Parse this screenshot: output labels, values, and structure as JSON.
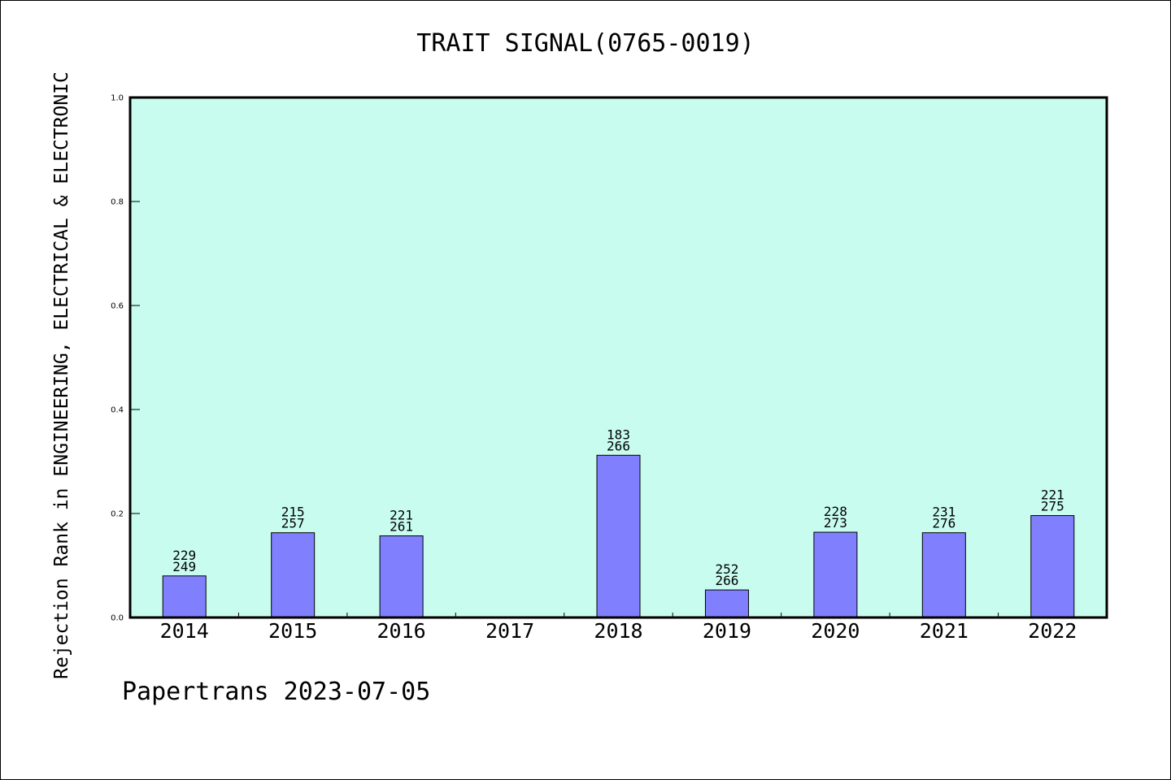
{
  "chart_data": {
    "type": "bar",
    "title": "TRAIT SIGNAL(0765-0019)",
    "ylabel": "Rejection Rank in ENGINEERING, ELECTRICAL & ELECTRONIC",
    "xlabel": "",
    "ylim": [
      0,
      1.0
    ],
    "yticks": [
      "0.0",
      "0.2",
      "0.4",
      "0.6",
      "0.8",
      "1.0"
    ],
    "categories": [
      "2014",
      "2015",
      "2016",
      "2017",
      "2018",
      "2019",
      "2020",
      "2021",
      "2022"
    ],
    "values": [
      0.08,
      0.163,
      0.157,
      null,
      0.312,
      0.053,
      0.164,
      0.163,
      0.196
    ],
    "rank_labels": [
      "229",
      "215",
      "221",
      "",
      "183",
      "252",
      "228",
      "231",
      "221"
    ],
    "total_labels": [
      "249",
      "257",
      "261",
      "",
      "266",
      "266",
      "273",
      "276",
      "275"
    ],
    "grid": false,
    "colors": {
      "plot_background": "#c8fcee",
      "bar_fill": "#8080ff"
    }
  },
  "footer": {
    "text": "Papertrans 2023-07-05"
  }
}
